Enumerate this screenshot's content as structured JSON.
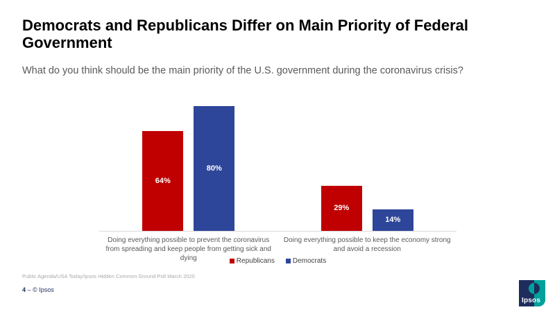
{
  "slide": {
    "title": "Democrats and Republicans Differ on Main Priority of Federal Government",
    "subtitle": "What do you think should be the main priority of the U.S. government during the coronavirus crisis?",
    "source": "Public Agenda/USA Today/Ipsos Hidden Common Ground Poll March 2020",
    "page_number": "4",
    "footer_separator": "–",
    "copyright": "© Ipsos",
    "logo_text": "Ipsos"
  },
  "chart_data": {
    "type": "bar",
    "categories": [
      "Doing everything possible to prevent the coronavirus from spreading and keep people from getting sick and dying",
      "Doing everything possible to keep the economy strong and avoid a recession"
    ],
    "series": [
      {
        "name": "Republicans",
        "color": "#C00000",
        "values": [
          64,
          29
        ]
      },
      {
        "name": "Democrats",
        "color": "#2E4699",
        "values": [
          80,
          14
        ]
      }
    ],
    "value_suffix": "%",
    "ylim": [
      0,
      84
    ],
    "grid": false,
    "legend_position": "bottom",
    "data_label_position": "inside-center",
    "data_label_color": "#FFFFFF",
    "axis_line_color": "#D9D9D9"
  },
  "colors": {
    "republican_red": "#C00000",
    "democrat_blue": "#2E4699",
    "title_black": "#000000",
    "subtitle_gray": "#595959",
    "legend_gray": "#404040",
    "source_gray": "#A9A9A9",
    "footer_navy": "#1F2E5C",
    "logo_navy": "#1E2D5C",
    "logo_teal": "#00A19B"
  }
}
